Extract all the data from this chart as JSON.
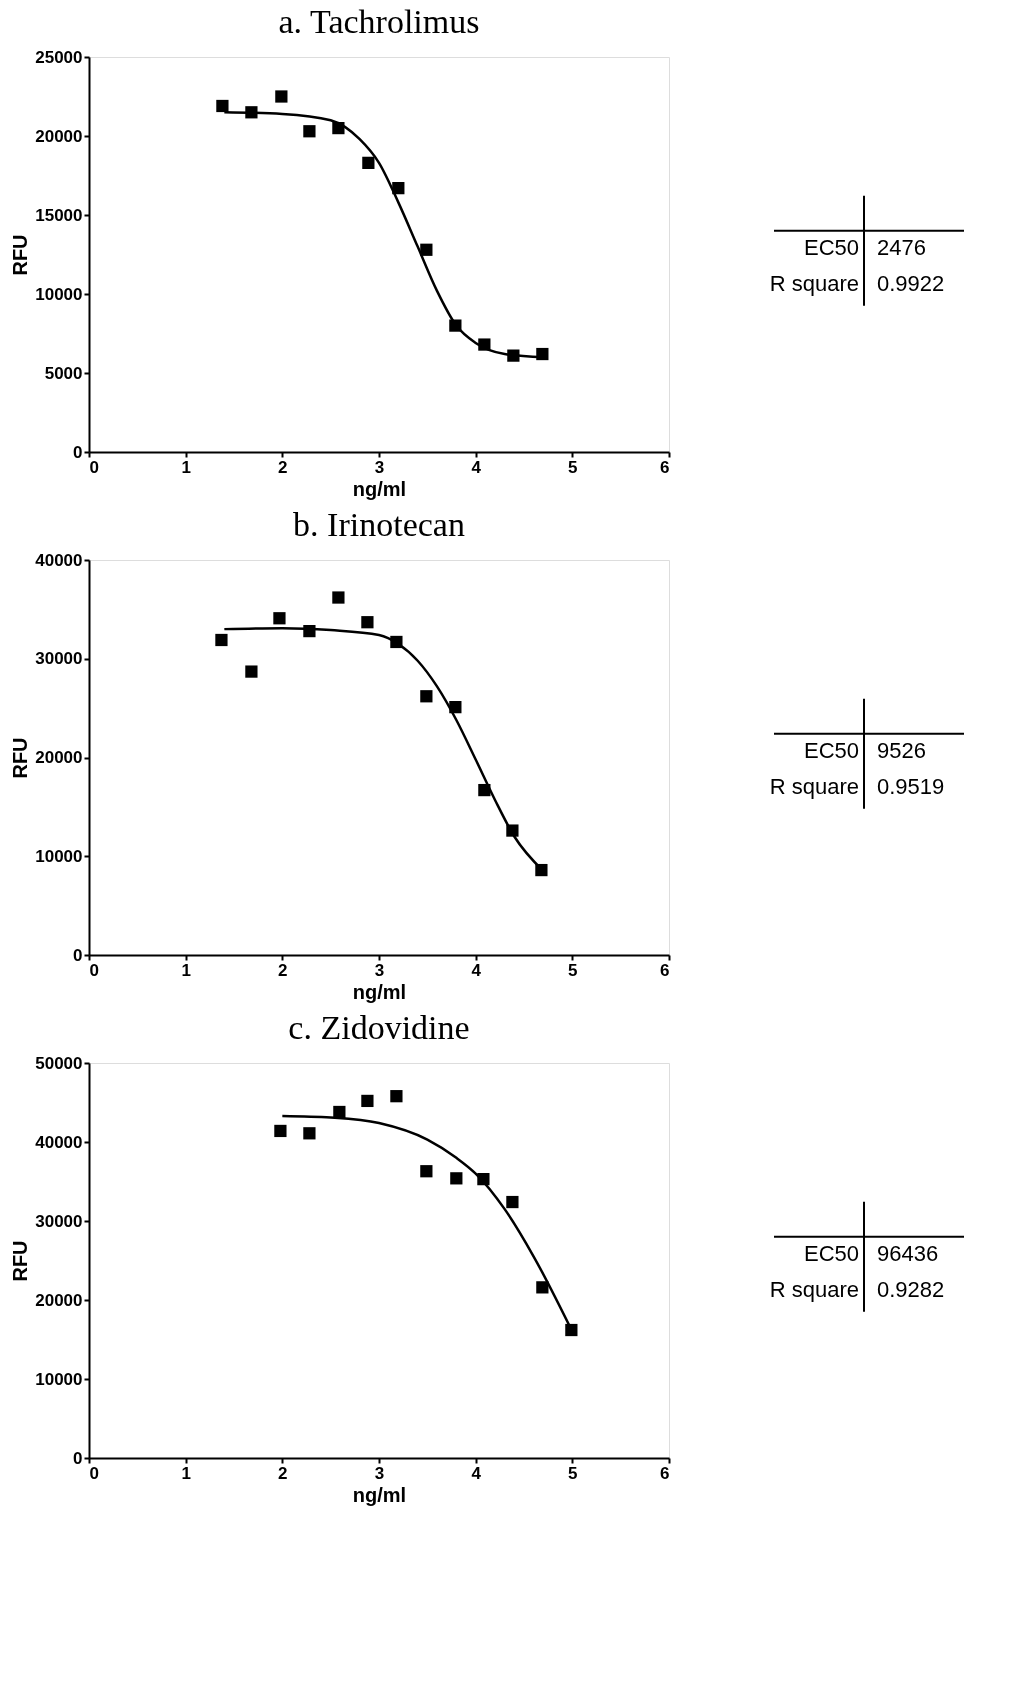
{
  "chart_data": [
    {
      "type": "scatter",
      "title": "a. Tachrolimus",
      "xlabel": "ng/ml",
      "ylabel": "RFU",
      "xlim": [
        0,
        6
      ],
      "xticks": [
        0,
        1,
        2,
        3,
        4,
        5,
        6
      ],
      "ylim": [
        0,
        25000
      ],
      "yticks": [
        0,
        5000,
        10000,
        15000,
        20000,
        25000
      ],
      "grid": false,
      "series": [
        {
          "marker": "square",
          "color": "#000000",
          "x": [
            1.38,
            1.68,
            1.99,
            2.28,
            2.58,
            2.89,
            3.2,
            3.49,
            3.79,
            4.09,
            4.39,
            4.69
          ],
          "values": [
            21900,
            21500,
            22500,
            20300,
            20500,
            18300,
            16700,
            12800,
            8000,
            6800,
            6100,
            6200
          ]
        },
        {
          "type": "line",
          "color": "#000000",
          "x": [
            1.4,
            2.0,
            2.5,
            2.8,
            3.0,
            3.2,
            3.4,
            3.6,
            3.8,
            4.0,
            4.3,
            4.7
          ],
          "values": [
            21500,
            21400,
            21000,
            19800,
            18300,
            15800,
            13000,
            10200,
            8000,
            6900,
            6200,
            6000
          ]
        }
      ],
      "annotations": [
        "EC50",
        "2476",
        "R square",
        "0.9922"
      ]
    },
    {
      "type": "scatter",
      "title": "b. Irinotecan",
      "xlabel": "ng/ml",
      "ylabel": "RFU",
      "xlim": [
        0,
        6
      ],
      "xticks": [
        0,
        1,
        2,
        3,
        4,
        5,
        6
      ],
      "ylim": [
        0,
        40000
      ],
      "yticks": [
        0,
        10000,
        20000,
        30000,
        40000
      ],
      "grid": false,
      "series": [
        {
          "marker": "square",
          "color": "#000000",
          "x": [
            1.37,
            1.68,
            1.97,
            2.28,
            2.58,
            2.88,
            3.18,
            3.49,
            3.79,
            4.09,
            4.38,
            4.68
          ],
          "values": [
            31900,
            28700,
            34100,
            32800,
            36200,
            33700,
            31700,
            26200,
            25100,
            16700,
            12600,
            8600
          ]
        },
        {
          "type": "line",
          "color": "#000000",
          "x": [
            1.4,
            2.0,
            2.5,
            3.0,
            3.2,
            3.4,
            3.6,
            3.8,
            4.0,
            4.2,
            4.4,
            4.7
          ],
          "values": [
            33000,
            33100,
            32900,
            32400,
            31500,
            29800,
            27200,
            23800,
            19800,
            15700,
            12000,
            8500
          ]
        }
      ],
      "annotations": [
        "EC50",
        "9526",
        "R square",
        "0.9519"
      ]
    },
    {
      "type": "scatter",
      "title": "c. Zidovidine",
      "xlabel": "ng/ml",
      "ylabel": "RFU",
      "xlim": [
        0,
        6
      ],
      "xticks": [
        0,
        1,
        2,
        3,
        4,
        5,
        6
      ],
      "ylim": [
        0,
        50000
      ],
      "yticks": [
        0,
        10000,
        20000,
        30000,
        40000,
        50000
      ],
      "grid": false,
      "series": [
        {
          "marker": "square",
          "color": "#000000",
          "x": [
            1.98,
            2.28,
            2.59,
            2.88,
            3.18,
            3.49,
            3.8,
            4.08,
            4.38,
            4.69,
            4.99
          ],
          "values": [
            41400,
            41100,
            43800,
            45200,
            45800,
            36300,
            35400,
            35300,
            32400,
            21600,
            16200
          ]
        },
        {
          "type": "line",
          "color": "#000000",
          "x": [
            2.0,
            2.5,
            3.0,
            3.5,
            3.8,
            4.0,
            4.3,
            4.6,
            5.0
          ],
          "values": [
            43300,
            43100,
            42400,
            40300,
            38000,
            36000,
            31500,
            25500,
            16000
          ]
        }
      ],
      "annotations": [
        "EC50",
        "96436",
        "R square",
        "0.9282"
      ]
    }
  ]
}
